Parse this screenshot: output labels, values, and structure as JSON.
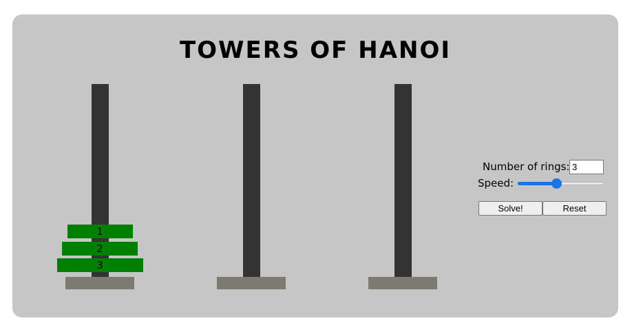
{
  "title": "TOWERS OF HANOI",
  "towers": [
    {
      "rings": [
        1,
        2,
        3
      ]
    },
    {
      "rings": []
    },
    {
      "rings": []
    }
  ],
  "ring_color": "#008000",
  "pole_color": "#333333",
  "base_color": "#7d7a72",
  "background_color": "#c6c6c6",
  "controls": {
    "rings_label": "Number of rings:",
    "rings_value": "3",
    "speed_label": "Speed:",
    "speed_fraction": 0.45,
    "solve_label": "Solve!",
    "reset_label": "Reset"
  }
}
